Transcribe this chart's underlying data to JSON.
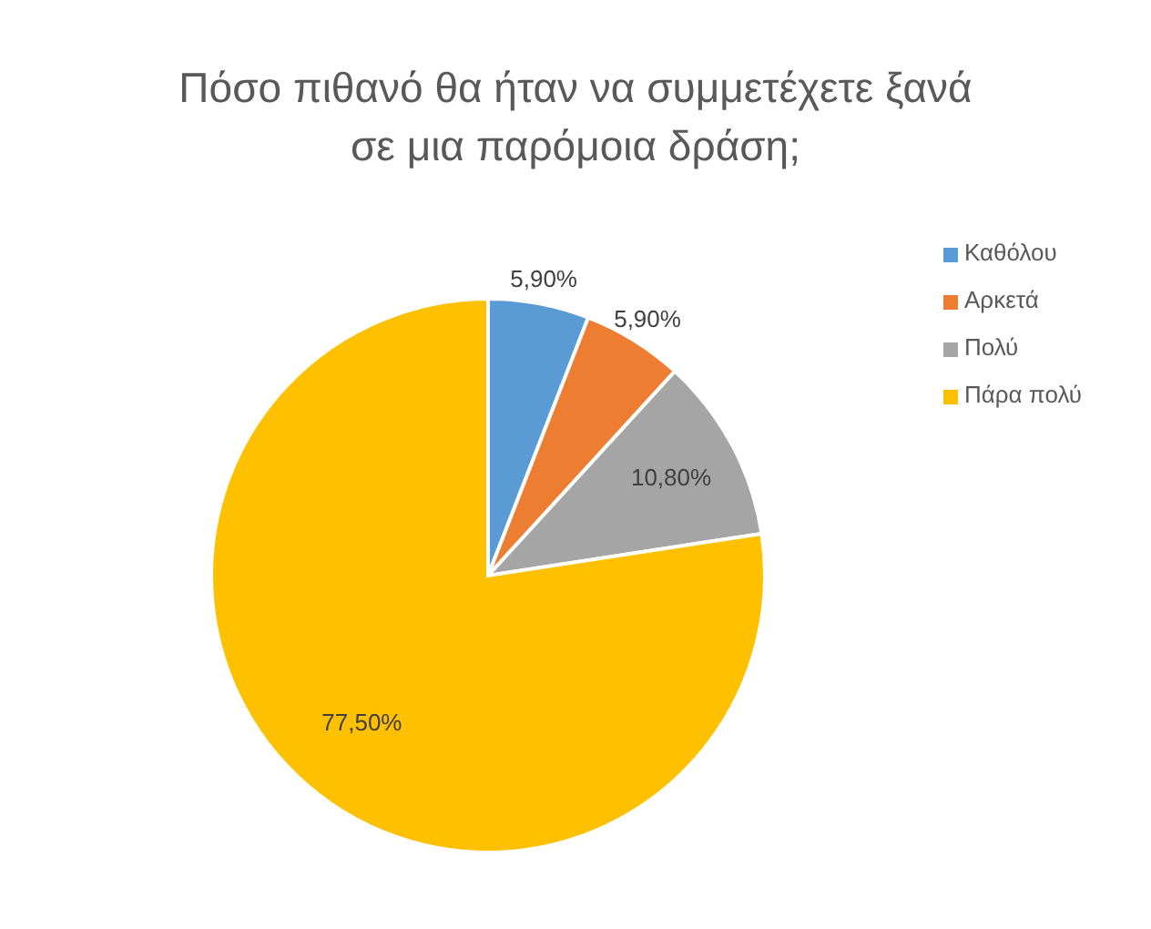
{
  "chart_data": {
    "type": "pie",
    "title": "Πόσο πιθανό θα ήταν να συμμετέχετε ξανά σε μια παρόμοια δράση;",
    "categories": [
      "Καθόλου",
      "Αρκετά",
      "Πολύ",
      "Πάρα πολύ"
    ],
    "values": [
      5.9,
      5.9,
      10.8,
      77.5
    ],
    "value_labels": [
      "5,90%",
      "5,90%",
      "10,80%",
      "77,50%"
    ],
    "colors": [
      "#5b9bd5",
      "#ed7d31",
      "#a5a5a5",
      "#ffc000"
    ],
    "legend": "right"
  }
}
